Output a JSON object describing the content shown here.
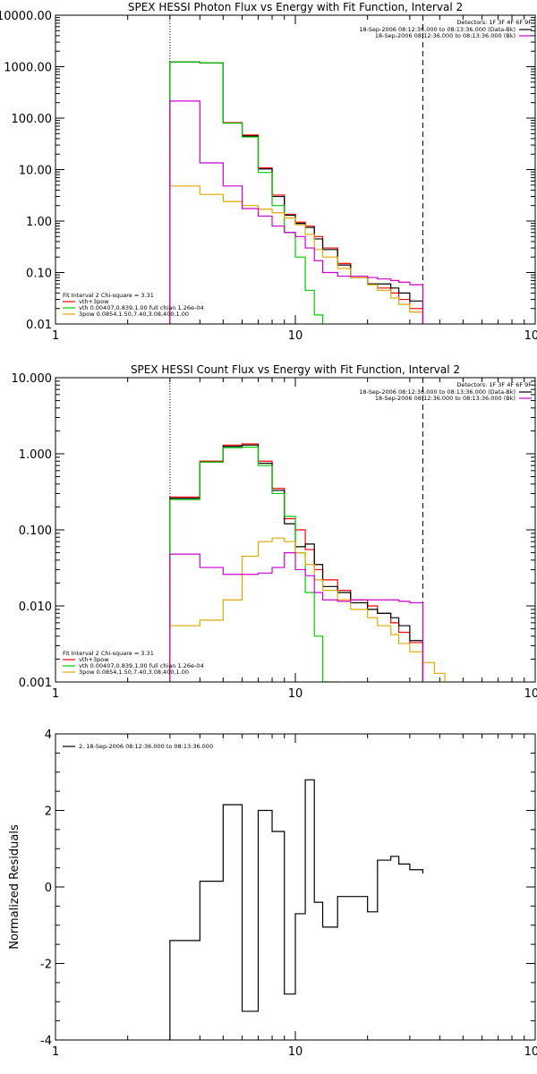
{
  "chart_data": [
    {
      "type": "line",
      "title": "SPEX HESSI Photon Flux vs Energy with Fit Function, Interval 2",
      "xscale": "log",
      "yscale": "log",
      "xlim": [
        1,
        100
      ],
      "ylim": [
        0.01,
        10000
      ],
      "xticks": [
        {
          "v": 1,
          "label": "1"
        },
        {
          "v": 10,
          "label": "10"
        },
        {
          "v": 100,
          "label": "100"
        }
      ],
      "yticks": [
        {
          "v": 0.01,
          "label": "0.01"
        },
        {
          "v": 0.1,
          "label": "0.10"
        },
        {
          "v": 1,
          "label": "1.00"
        },
        {
          "v": 10,
          "label": "10.00"
        },
        {
          "v": 100,
          "label": "100.00"
        },
        {
          "v": 1000,
          "label": "1000.00"
        },
        {
          "v": 10000,
          "label": "10000.00"
        }
      ],
      "vlines": [
        {
          "x": 3.0,
          "style": "dotted"
        },
        {
          "x": 34,
          "style": "dashed"
        }
      ],
      "legend_top": {
        "header": "Detectors: 1F 3F 4F 6F 9F",
        "entries": [
          {
            "label": "18-Sep-2006 08:12:36.000 to 08:13:36.000 (Data-Bk)",
            "color": "#000000"
          },
          {
            "label": "18-Sep-2006 08:12:36.000 to 08:13:36.000 (Bk)",
            "color": "#cc00cc"
          }
        ]
      },
      "legend_bottom": {
        "header": "Fit Interval 2   Chi-square = 3.31",
        "entries": [
          {
            "label": "vth+3pow",
            "color": "#ff0000"
          },
          {
            "label": "vth 0.00407,0.839,1.00  full chian 1.26e-04",
            "color": "#00cc00"
          },
          {
            "label": "3pow 0.0854,1.50,7.40,3.08,400,1.00",
            "color": "#ddaa00"
          }
        ]
      },
      "edges": [
        3,
        4,
        5,
        6,
        7,
        8,
        9,
        10,
        11,
        12,
        13,
        15,
        17,
        20,
        22,
        25,
        27,
        30,
        34
      ],
      "series": [
        {
          "name": "vth+3pow",
          "color": "#ff0000",
          "start": 3,
          "values": [
            1230,
            1190,
            82,
            47,
            10.8,
            3.2,
            1.35,
            0.95,
            0.8,
            0.5,
            0.3,
            0.15,
            0.08,
            0.06,
            0.05,
            0.04,
            0.03,
            0.02
          ]
        },
        {
          "name": "Data-Bk",
          "color": "#000000",
          "start": 3,
          "values": [
            1230,
            1190,
            80,
            45,
            10.3,
            3.0,
            1.3,
            0.9,
            0.75,
            0.45,
            0.28,
            0.14,
            0.08,
            0.06,
            0.06,
            0.05,
            0.04,
            0.028
          ]
        },
        {
          "name": "vth",
          "color": "#00cc00",
          "start": 3,
          "values": [
            1230,
            1190,
            80,
            43,
            8.8,
            2.0,
            0.6,
            0.2,
            0.045,
            0.015,
            0.008
          ]
        },
        {
          "name": "3pow",
          "color": "#ddaa00",
          "start": 3,
          "values": [
            4.8,
            3.3,
            2.4,
            2.0,
            1.7,
            1.45,
            1.15,
            0.85,
            0.55,
            0.28,
            0.2,
            0.12,
            0.08,
            0.058,
            0.045,
            0.032,
            0.024,
            0.017,
            0.012,
            0.009
          ]
        },
        {
          "name": "Bk",
          "color": "#cc00cc",
          "start": 3,
          "values": [
            215,
            13.5,
            4.8,
            1.75,
            1.25,
            0.8,
            0.6,
            0.5,
            0.3,
            0.17,
            0.1,
            0.085,
            0.085,
            0.08,
            0.075,
            0.07,
            0.065,
            0.058
          ]
        }
      ]
    },
    {
      "type": "line",
      "title": "SPEX HESSI Count Flux vs Energy with Fit Function, Interval 2",
      "xscale": "log",
      "yscale": "log",
      "xlim": [
        1,
        100
      ],
      "ylim": [
        0.001,
        10
      ],
      "xticks": [
        {
          "v": 1,
          "label": "1"
        },
        {
          "v": 10,
          "label": "10"
        },
        {
          "v": 100,
          "label": "100"
        }
      ],
      "yticks": [
        {
          "v": 0.001,
          "label": "0.001"
        },
        {
          "v": 0.01,
          "label": "0.010"
        },
        {
          "v": 0.1,
          "label": "0.100"
        },
        {
          "v": 1,
          "label": "1.000"
        },
        {
          "v": 10,
          "label": "10.000"
        }
      ],
      "vlines": [
        {
          "x": 3.0,
          "style": "dotted"
        },
        {
          "x": 34,
          "style": "dashed"
        }
      ],
      "legend_top": {
        "header": "Detectors: 1F 3F 4F 6F 9F",
        "entries": [
          {
            "label": "18-Sep-2006 08:12:36.000 to 08:13:36.000 (Data-Bk)",
            "color": "#000000"
          },
          {
            "label": "18-Sep-2006 08:12:36.000 to 08:13:36.000 (Bk)",
            "color": "#cc00cc"
          }
        ]
      },
      "legend_bottom": {
        "header": "Fit Interval 2   Chi-square = 3.31",
        "entries": [
          {
            "label": "vth+3pow",
            "color": "#ff0000"
          },
          {
            "label": "vth 0.00407,0.839,1.00  full chian 1.26e-04",
            "color": "#00cc00"
          },
          {
            "label": "3pow 0.0854,1.50,7.40,3.08,400,1.00",
            "color": "#ddaa00"
          }
        ]
      },
      "edges": [
        3,
        4,
        5,
        6,
        7,
        8,
        9,
        10,
        11,
        12,
        13,
        15,
        17,
        20,
        22,
        25,
        27,
        30,
        34,
        38,
        42
      ],
      "series": [
        {
          "name": "vth+3pow",
          "color": "#ff0000",
          "start": 3,
          "values": [
            0.27,
            0.8,
            1.3,
            1.35,
            0.8,
            0.35,
            0.14,
            0.1,
            0.055,
            0.03,
            0.022,
            0.016,
            0.012,
            0.01,
            0.008,
            0.006,
            0.0045,
            0.0033
          ]
        },
        {
          "name": "Data-Bk",
          "color": "#000000",
          "start": 3,
          "values": [
            0.26,
            0.78,
            1.25,
            1.3,
            0.75,
            0.33,
            0.12,
            0.06,
            0.065,
            0.035,
            0.018,
            0.015,
            0.011,
            0.009,
            0.008,
            0.007,
            0.0055,
            0.0035
          ]
        },
        {
          "name": "vth",
          "color": "#00cc00",
          "start": 3,
          "values": [
            0.25,
            0.78,
            1.2,
            1.22,
            0.7,
            0.3,
            0.15,
            0.05,
            0.015,
            0.004,
            0.001
          ]
        },
        {
          "name": "3pow",
          "color": "#ddaa00",
          "start": 3,
          "values": [
            0.0055,
            0.0065,
            0.012,
            0.045,
            0.07,
            0.078,
            0.07,
            0.05,
            0.035,
            0.022,
            0.016,
            0.012,
            0.009,
            0.007,
            0.0055,
            0.0042,
            0.0032,
            0.0025,
            0.0018,
            0.0013,
            0.001
          ]
        },
        {
          "name": "Bk",
          "color": "#cc00cc",
          "start": 3,
          "values": [
            0.048,
            0.032,
            0.026,
            0.026,
            0.027,
            0.032,
            0.05,
            0.03,
            0.025,
            0.015,
            0.012,
            0.0115,
            0.012,
            0.012,
            0.012,
            0.012,
            0.0115,
            0.011
          ]
        }
      ]
    },
    {
      "type": "line",
      "title": "",
      "xscale": "log",
      "yscale": "linear",
      "xlim": [
        1,
        100
      ],
      "ylim": [
        -4,
        4
      ],
      "ylabel": "Normalized Residuals",
      "xticks": [
        {
          "v": 1,
          "label": "1"
        },
        {
          "v": 10,
          "label": "10"
        },
        {
          "v": 100,
          "label": "100"
        }
      ],
      "yticks": [
        {
          "v": -4,
          "label": "-4"
        },
        {
          "v": -2,
          "label": "-2"
        },
        {
          "v": 0,
          "label": "0"
        },
        {
          "v": 2,
          "label": "2"
        },
        {
          "v": 4,
          "label": "4"
        }
      ],
      "legend_top_left": {
        "entries": [
          {
            "label": "2, 18-Sep-2006 08:12:36.000 to 08:13:36.000",
            "color": "#000000"
          }
        ]
      },
      "edges": [
        3,
        4,
        5,
        6,
        7,
        8,
        9,
        10,
        11,
        12,
        13,
        15,
        17,
        20,
        22,
        25,
        27,
        30,
        34
      ],
      "series": [
        {
          "name": "2, 18-Sep-2006 08:12:36.000 to 08:13:36.000",
          "color": "#000000",
          "start": 3,
          "values": [
            -1.4,
            0.15,
            2.15,
            -3.25,
            2.0,
            1.45,
            -2.8,
            -0.7,
            2.8,
            -0.4,
            -1.05,
            -0.25,
            -0.25,
            -0.65,
            0.7,
            0.8,
            0.6,
            0.45,
            0.35
          ]
        }
      ]
    }
  ]
}
